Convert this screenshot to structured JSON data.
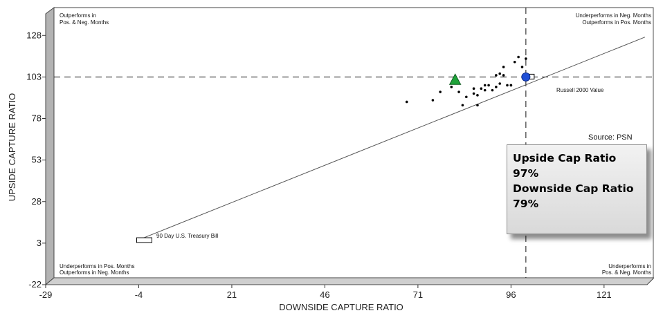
{
  "chart_data": {
    "type": "scatter",
    "xlabel": "DOWNSIDE CAPTURE RATIO",
    "ylabel": "UPSIDE CAPTURE RATIO",
    "xlim": [
      -29,
      132
    ],
    "ylim": [
      -22,
      141
    ],
    "xticks": [
      "-29",
      "-4",
      "21",
      "46",
      "71",
      "96",
      "121"
    ],
    "yticks": [
      "-22",
      "3",
      "28",
      "53",
      "78",
      "103",
      "128"
    ],
    "reference_lines": {
      "x": 100,
      "y": 103
    },
    "diagonal": {
      "from": [
        -4,
        5
      ],
      "to": [
        132,
        127
      ]
    },
    "quadrant_labels": {
      "top_left": [
        "Outperforms in",
        "Pos. & Neg. Months"
      ],
      "top_right": [
        "Underperforms in Neg. Months",
        "Outperforms in Pos. Months"
      ],
      "bottom_left": [
        "Underperforms in Pos. Months",
        "Outperforms in Neg. Months"
      ],
      "bottom_right": [
        "Underperforms in",
        "Pos. & Neg. Months"
      ]
    },
    "series": [
      {
        "marker": "dot",
        "color": "#000000",
        "points": [
          [
            68,
            88
          ],
          [
            75,
            89
          ],
          [
            77,
            94
          ],
          [
            80,
            97
          ],
          [
            82,
            94
          ],
          [
            83,
            86
          ],
          [
            84,
            91
          ],
          [
            86,
            96
          ],
          [
            86,
            93
          ],
          [
            87,
            86
          ],
          [
            87,
            92
          ],
          [
            88,
            96
          ],
          [
            89,
            98
          ],
          [
            89,
            95
          ],
          [
            90,
            98
          ],
          [
            91,
            95
          ],
          [
            92,
            104
          ],
          [
            92,
            97
          ],
          [
            93,
            105
          ],
          [
            93,
            99
          ],
          [
            94,
            104
          ],
          [
            94,
            109
          ],
          [
            95,
            98
          ],
          [
            96,
            98
          ],
          [
            96,
            98
          ],
          [
            97,
            112
          ],
          [
            98,
            115
          ],
          [
            99,
            109
          ],
          [
            100,
            114
          ],
          [
            101,
            104
          ]
        ]
      },
      {
        "name": "Russell 2000 Value",
        "marker": "circle",
        "color": "#1f4fd6",
        "points": [
          [
            100,
            103
          ]
        ]
      },
      {
        "name": "90 Day U.S. Treasury Bill",
        "marker": "rectangle",
        "color": "#ffffff",
        "points": [
          [
            -4,
            5
          ]
        ]
      },
      {
        "marker": "triangle",
        "color": "#1fa33a",
        "points": [
          [
            81,
            101
          ]
        ]
      }
    ]
  },
  "source_note": "Source:  PSN",
  "callout": {
    "upside_label": "Upside Cap Ratio",
    "upside_value": "97%",
    "downside_label": "Downside Cap Ratio",
    "downside_value": "79%"
  },
  "colors": {
    "frame": "#4a4a4a",
    "wall": "#b0b0b0",
    "wall_dark": "#8a8a8a"
  }
}
